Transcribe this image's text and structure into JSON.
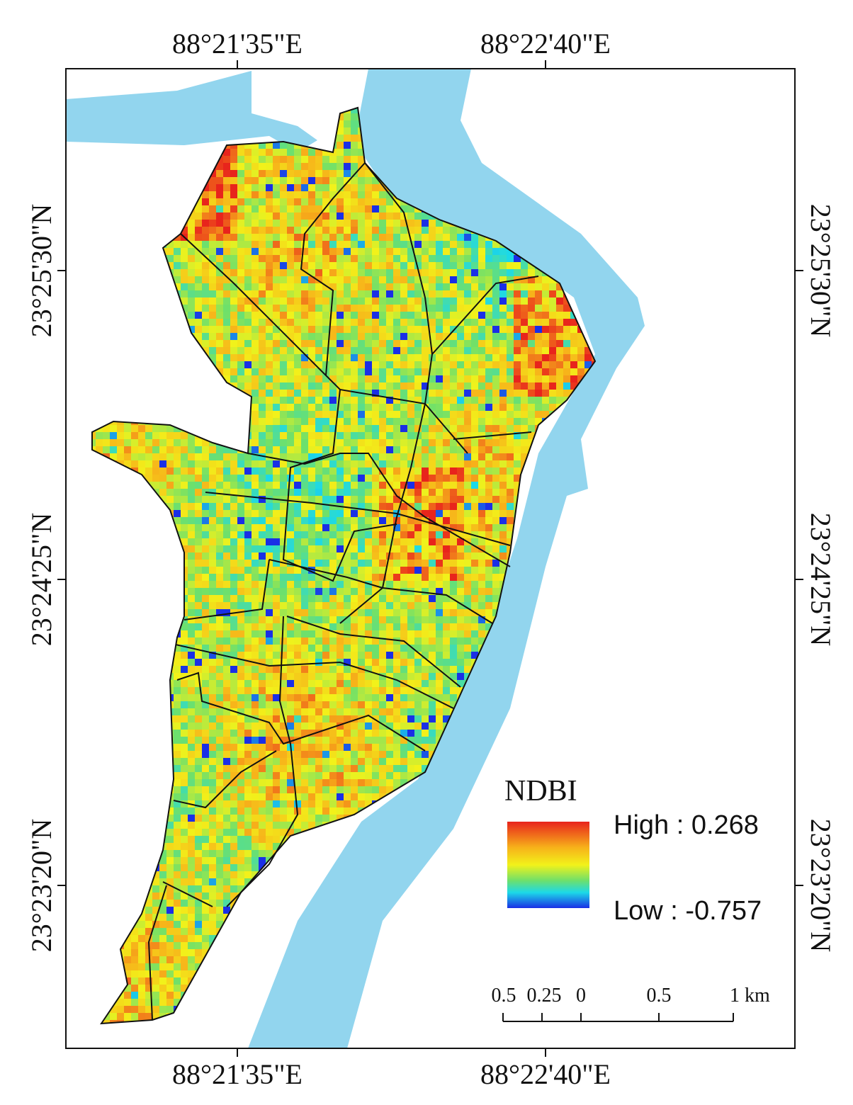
{
  "map": {
    "x_labels_top": [
      "88°21'35\"E",
      "88°22'40\"E"
    ],
    "x_labels_bottom": [
      "88°21'35\"E",
      "88°22'40\"E"
    ],
    "y_labels_left": [
      "23°25'30\"N",
      "23°24'25\"N",
      "23°23'20\"N"
    ],
    "y_labels_right": [
      "23°25'30\"N",
      "23°24'25\"N",
      "23°23'20\"N"
    ],
    "legend": {
      "title": "NDBI",
      "high": "High : 0.268",
      "low": "Low : -0.757"
    },
    "scale_bar": {
      "labels": [
        "0.5",
        "0.25",
        "0",
        "0.5",
        "1 km"
      ]
    }
  }
}
